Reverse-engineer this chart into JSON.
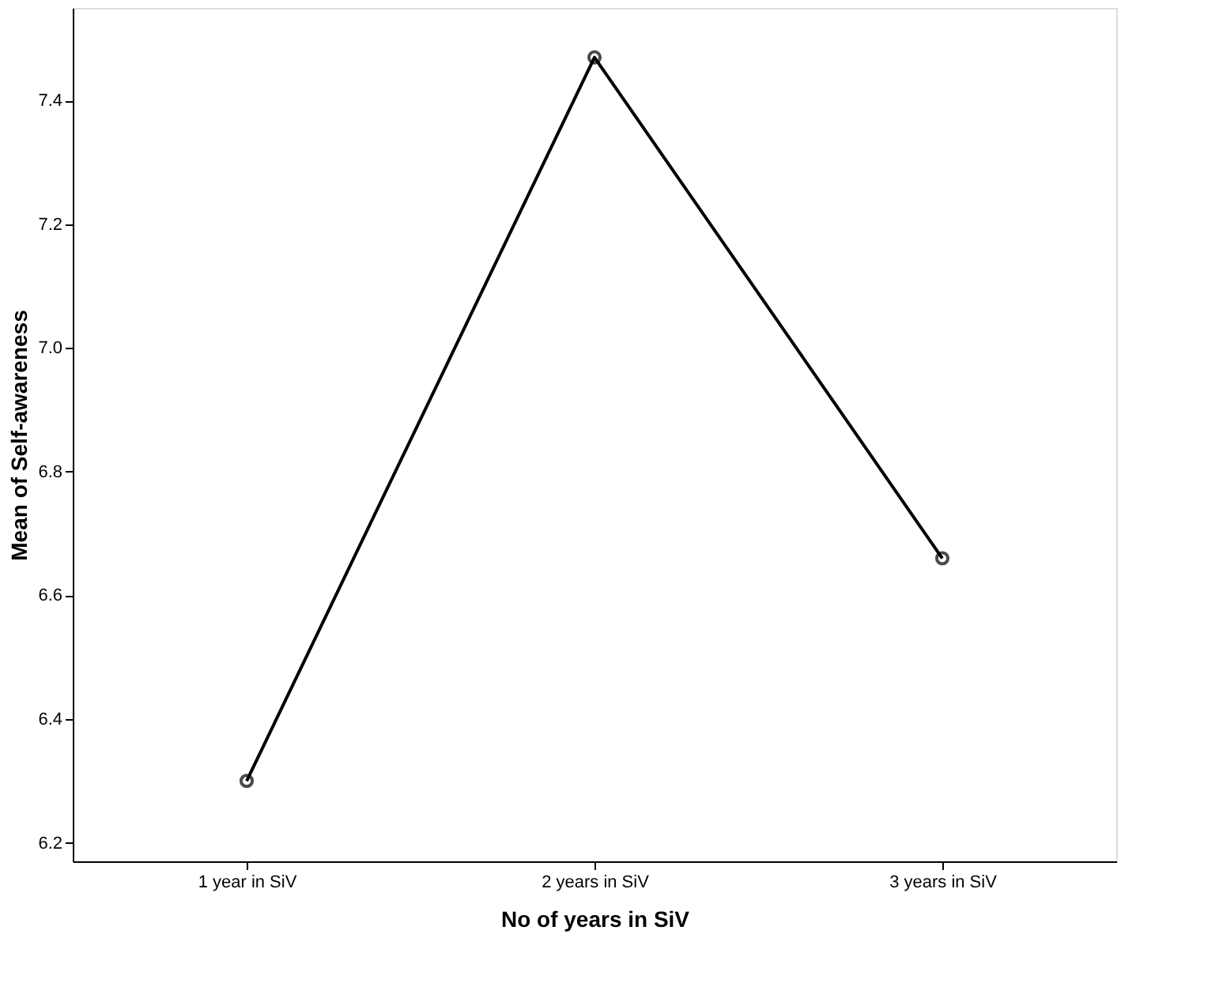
{
  "chart_data": {
    "type": "line",
    "xlabel": "No of years in SiV",
    "ylabel": "Mean of Self-awareness",
    "categories": [
      "1 year in SiV",
      "2 years in SiV",
      "3 years in SiV"
    ],
    "values": [
      6.3,
      7.47,
      6.66
    ],
    "color": "#000000",
    "marker": "circle",
    "ylim": [
      6.17,
      7.55
    ],
    "yticks": [
      {
        "value": 6.2,
        "label": "6.2"
      },
      {
        "value": 6.4,
        "label": "6.4"
      },
      {
        "value": 6.6,
        "label": "6.6"
      },
      {
        "value": 6.8,
        "label": "6.8"
      },
      {
        "value": 7.0,
        "label": "7.0"
      },
      {
        "value": 7.2,
        "label": "7.2"
      },
      {
        "value": 7.4,
        "label": "7.4"
      }
    ],
    "grid": false
  }
}
